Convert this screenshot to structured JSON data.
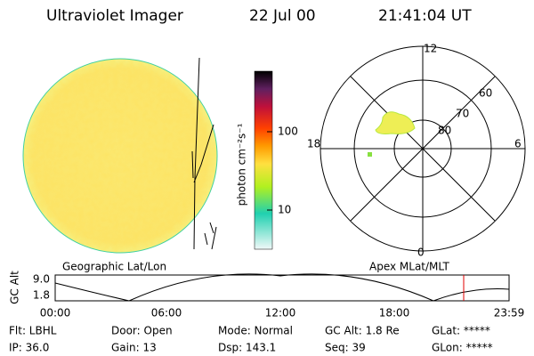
{
  "header": {
    "title": "Ultraviolet Imager",
    "date": "22 Jul 00",
    "time": "21:41:04 UT"
  },
  "colorbar": {
    "label": "photon cm⁻²s⁻¹",
    "ticks": [
      100,
      10
    ]
  },
  "polar": {
    "mlt_labels": [
      "12",
      "18",
      "6",
      "0"
    ],
    "mlat_labels": [
      "60",
      "70",
      "80"
    ]
  },
  "captions": {
    "left": "Geographic Lat/Lon",
    "right": "Apex MLat/MLT"
  },
  "altitude": {
    "label": "GC Alt",
    "top": "9.0",
    "current": "1.8",
    "times": [
      "00:00",
      "06:00",
      "12:00",
      "18:00",
      "23:59"
    ]
  },
  "footer": {
    "row1": [
      "Flt: LBHL",
      "Door: Open",
      "Mode: Normal",
      "GC Alt: 1.8 Re",
      "GLat: *****"
    ],
    "row2": [
      "IP: 36.0",
      "Gain: 13",
      "Dsp: 143.1",
      "Seq: 39",
      "GLon: *****"
    ]
  }
}
